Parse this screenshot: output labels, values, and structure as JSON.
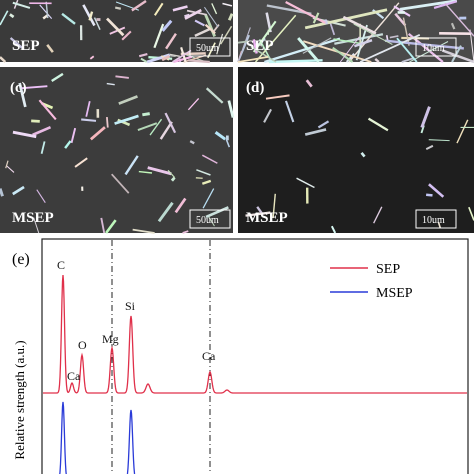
{
  "panels": [
    {
      "sample": "SEP",
      "scale_bar": "50um"
    },
    {
      "sample": "SEP",
      "scale_bar": "10um"
    },
    {
      "label": "(c)",
      "sample": "MSEP",
      "scale_bar": "50um"
    },
    {
      "label": "(d)",
      "sample": "MSEP",
      "scale_bar": "10um"
    }
  ],
  "spectrum": {
    "label": "(e)",
    "y_label": "Relative strength (a.u.)",
    "peaks": [
      "C",
      "Ca",
      "O",
      "Mg",
      "Si",
      "Ca"
    ],
    "legend": [
      "SEP",
      "MSEP"
    ]
  }
}
